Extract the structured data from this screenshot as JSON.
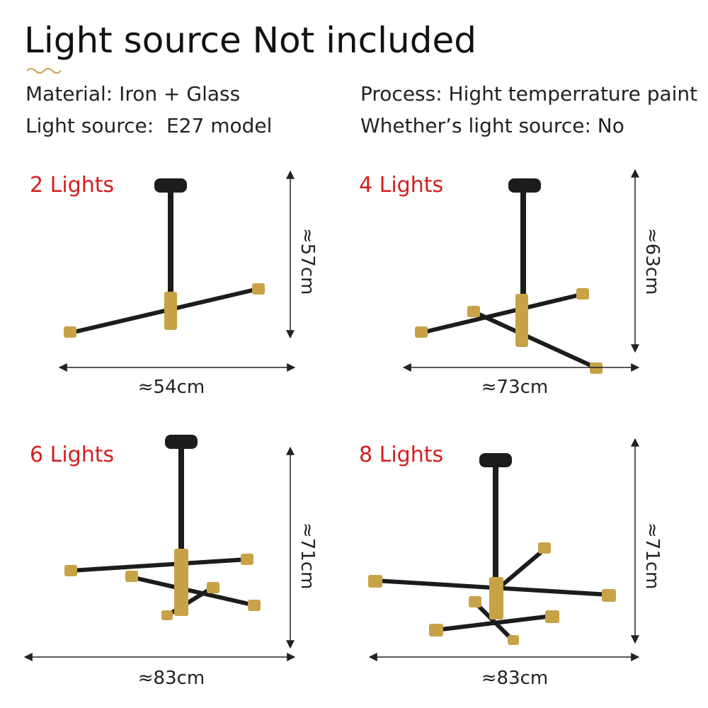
{
  "header": {
    "title": "Light source Not included"
  },
  "specs": [
    "Material: Iron + Glass",
    "Light source:  E27 model",
    "Process: Hight temperrature paint",
    "Whether’s light source: No"
  ],
  "panels": [
    {
      "label": "2 Lights",
      "height": "≈57cm",
      "width": "≈54cm"
    },
    {
      "label": "4 Lights",
      "height": "≈63cm",
      "width": "≈73cm"
    },
    {
      "label": "6 Lights",
      "height": "≈71cm",
      "width": "≈83cm"
    },
    {
      "label": "8 Lights",
      "height": "≈71cm",
      "width": "≈83cm"
    }
  ]
}
